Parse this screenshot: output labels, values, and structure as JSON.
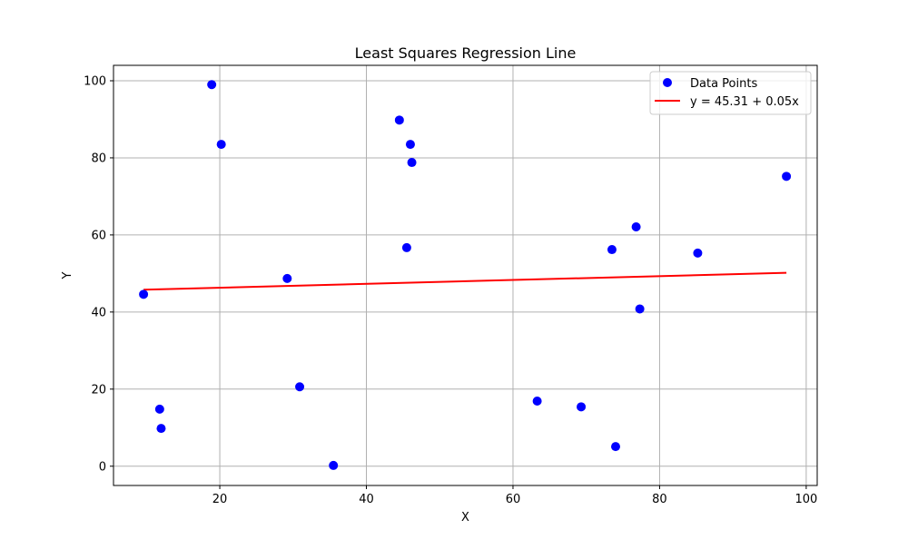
{
  "chart_data": {
    "type": "scatter",
    "title": "Least Squares Regression Line",
    "xlabel": "X",
    "ylabel": "Y",
    "xlim": [
      5.5,
      101.5
    ],
    "ylim": [
      -5,
      104
    ],
    "x_ticks": [
      20,
      40,
      60,
      80,
      100
    ],
    "y_ticks": [
      0,
      20,
      40,
      60,
      80,
      100
    ],
    "grid": true,
    "legend_position": "top-right",
    "series": [
      {
        "name": "Data Points",
        "kind": "scatter",
        "color": "#0000ff",
        "points": [
          {
            "x": 9.6,
            "y": 44.6
          },
          {
            "x": 11.8,
            "y": 14.8
          },
          {
            "x": 12.0,
            "y": 9.8
          },
          {
            "x": 18.9,
            "y": 99.0
          },
          {
            "x": 20.2,
            "y": 83.5
          },
          {
            "x": 29.2,
            "y": 48.7
          },
          {
            "x": 30.9,
            "y": 20.6
          },
          {
            "x": 35.5,
            "y": 0.2
          },
          {
            "x": 44.5,
            "y": 89.8
          },
          {
            "x": 45.5,
            "y": 56.7
          },
          {
            "x": 46.0,
            "y": 83.5
          },
          {
            "x": 46.2,
            "y": 78.8
          },
          {
            "x": 63.3,
            "y": 16.9
          },
          {
            "x": 69.3,
            "y": 15.4
          },
          {
            "x": 73.5,
            "y": 56.2
          },
          {
            "x": 74.0,
            "y": 5.1
          },
          {
            "x": 76.8,
            "y": 62.1
          },
          {
            "x": 77.3,
            "y": 40.8
          },
          {
            "x": 85.2,
            "y": 55.3
          },
          {
            "x": 97.3,
            "y": 75.2
          }
        ]
      },
      {
        "name": "y = 45.31 + 0.05x",
        "kind": "line",
        "color": "#ff0000",
        "intercept": 45.31,
        "slope": 0.05,
        "x_range": [
          9.6,
          97.3
        ]
      }
    ]
  }
}
